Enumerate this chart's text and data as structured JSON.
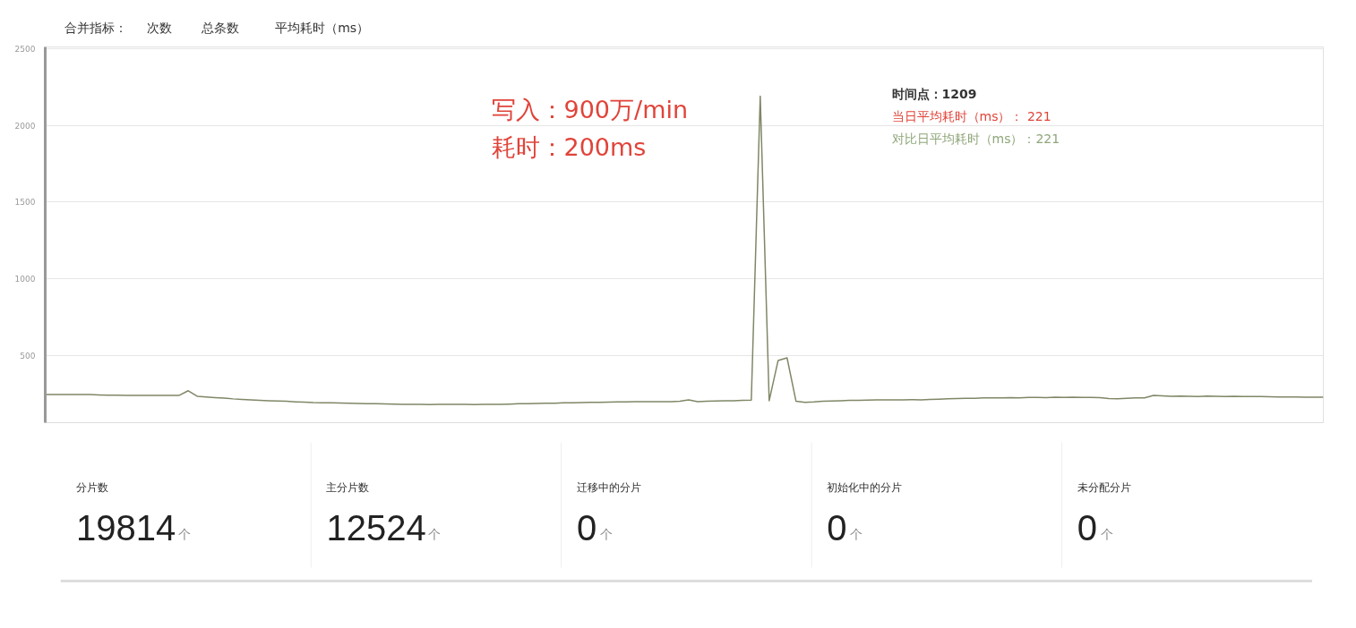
{
  "chart_data": [
    {
      "type": "line",
      "annotations": [
        "合并指标：",
        "次数",
        "总条数",
        "平均耗时（ms）",
        "写入：900万/min",
        "耗时：200ms",
        "时间点：1209",
        "当日平均耗时（ms）：   221",
        "对比日平均耗时（ms）：221"
      ],
      "categories": [
        null,
        null,
        null,
        null,
        null,
        null,
        null,
        null,
        null,
        null,
        null,
        null,
        null,
        null,
        null,
        null,
        null,
        null,
        null,
        null,
        null,
        null,
        null,
        null,
        null,
        null,
        null,
        null,
        null,
        null,
        null,
        null,
        null,
        null,
        null,
        null,
        null,
        null,
        null,
        null,
        null,
        null,
        null,
        null,
        null,
        null,
        null,
        null,
        null,
        null,
        null,
        null,
        null,
        null,
        null,
        null,
        null,
        null,
        null,
        null,
        null,
        null,
        null,
        null,
        null,
        null,
        null,
        null,
        null,
        null,
        null,
        null,
        null,
        null,
        null,
        null,
        null,
        null,
        null,
        null,
        null,
        null,
        null,
        null,
        null,
        null,
        null,
        null,
        null,
        null,
        null,
        null,
        null,
        null,
        null,
        null,
        null,
        null,
        null,
        null,
        null,
        null,
        null,
        null,
        null,
        null,
        null,
        null,
        null,
        null,
        null,
        null,
        null,
        null,
        null,
        null,
        null,
        null,
        null,
        null,
        null,
        null,
        null,
        null,
        null,
        null,
        null,
        null,
        null,
        null,
        null,
        null,
        null,
        null,
        null,
        null,
        null,
        null,
        null,
        null,
        null,
        null,
        null,
        null
      ],
      "series": [
        {
          "color": "#7f8766",
          "values": [
            249,
            249,
            249,
            249,
            249,
            248,
            246,
            244,
            244,
            243,
            243,
            243,
            243,
            243,
            243,
            243,
            273,
            237,
            232,
            228,
            225,
            220,
            217,
            214,
            211,
            208,
            206,
            204,
            201,
            199,
            196,
            195,
            194,
            193,
            192,
            190,
            189,
            188,
            187,
            186,
            184,
            185,
            184,
            183,
            184,
            185,
            184,
            184,
            183,
            184,
            185,
            184,
            186,
            188,
            189,
            190,
            191,
            192,
            194,
            195,
            196,
            197,
            198,
            199,
            200,
            201,
            202,
            202,
            202,
            202,
            202,
            205,
            214,
            202,
            204,
            206,
            208,
            208,
            210,
            212,
            2190,
            208,
            470,
            487,
            205,
            198,
            200,
            204,
            206,
            208,
            210,
            211,
            212,
            213,
            214,
            214,
            214,
            215,
            214,
            216,
            218,
            220,
            222,
            223,
            224,
            226,
            226,
            226,
            228,
            226,
            229,
            230,
            228,
            231,
            230,
            231,
            230,
            229,
            228,
            222,
            221,
            223,
            226,
            226,
            243,
            240,
            237,
            238,
            237,
            236,
            238,
            237,
            236,
            237,
            236,
            236,
            235,
            234,
            233,
            232,
            232,
            231,
            231,
            231
          ]
        }
      ],
      "ylim": [
        65,
        2510
      ],
      "yticks": [
        500,
        1000,
        1500,
        2000,
        2500
      ],
      "grid": "y"
    },
    {
      "type": "other",
      "categories": [
        "分片数",
        "主分片数",
        "迁移中的分片",
        "初始化中的分片",
        "未分配分片"
      ],
      "values": [
        19814,
        12524,
        0,
        0,
        0
      ],
      "data_labels": true,
      "annotations": [
        "个"
      ]
    }
  ]
}
